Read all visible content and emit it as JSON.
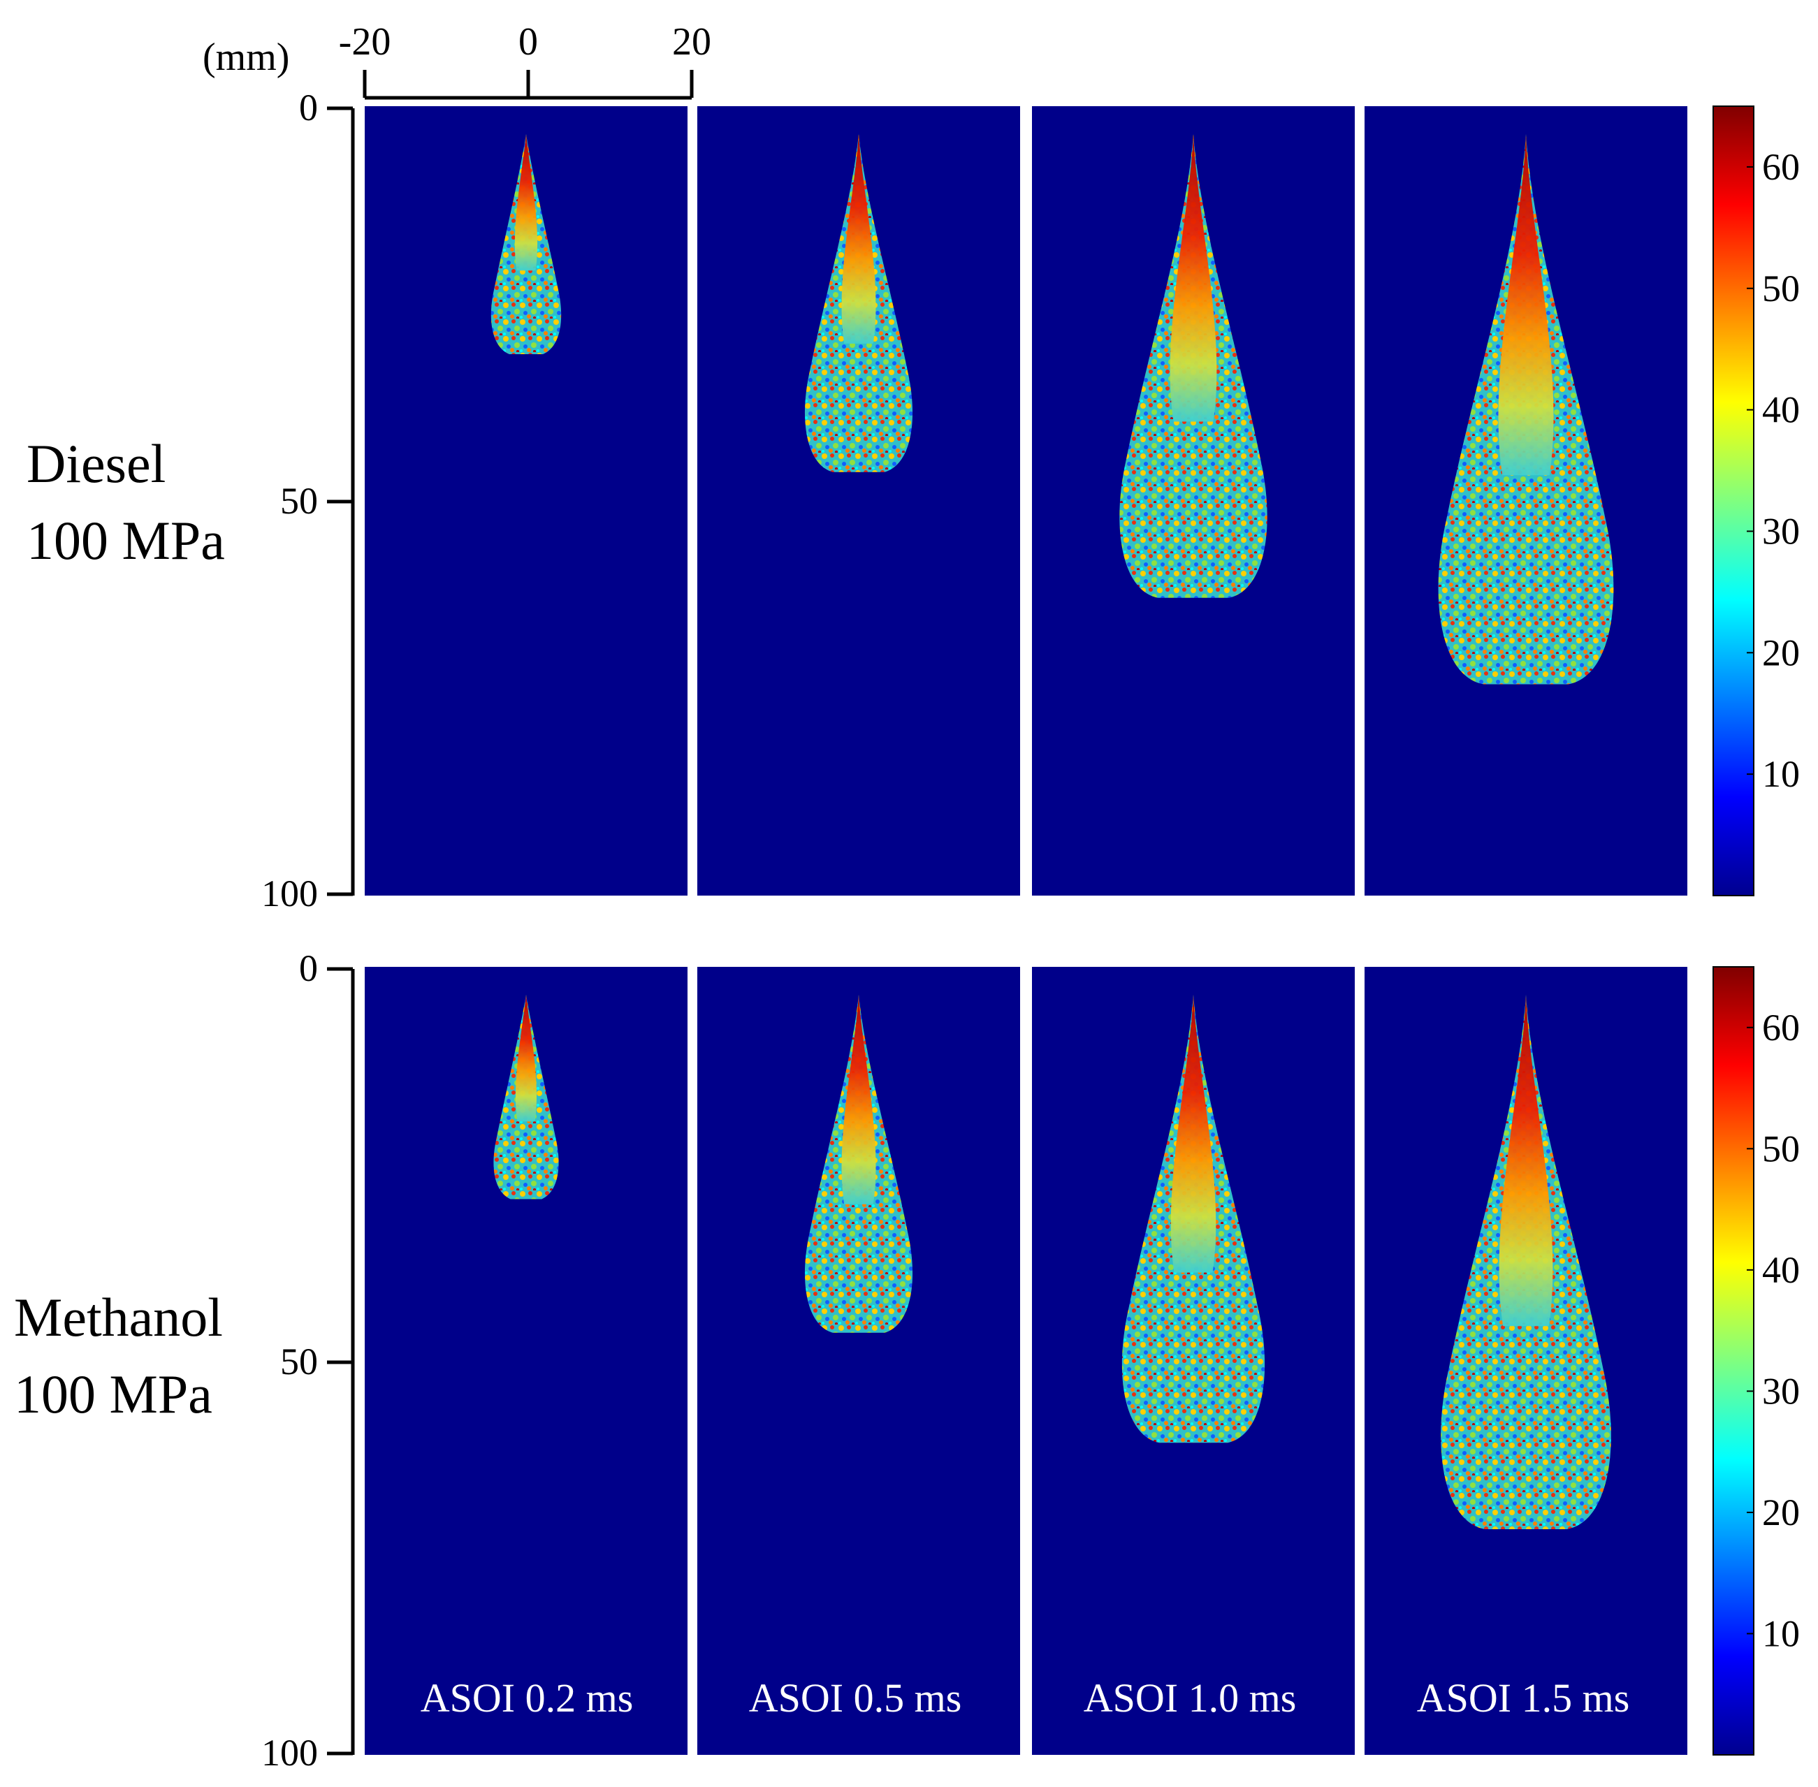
{
  "figure": {
    "unit_label": "(mm)",
    "x_axis": {
      "ticks": [
        "-20",
        "0",
        "20"
      ]
    },
    "y_axis": {
      "ticks": [
        "0",
        "50",
        "100"
      ]
    },
    "rows": [
      {
        "fuel": "Diesel",
        "pressure": "100 MPa",
        "spray_lengths_mm": [
          28,
          43,
          59,
          70
        ]
      },
      {
        "fuel": "Methanol",
        "pressure": "100 MPa",
        "spray_lengths_mm": [
          26,
          43,
          57,
          68
        ]
      }
    ],
    "time_labels": [
      "ASOI 0.2 ms",
      "ASOI 0.5 ms",
      "ASOI 1.0 ms",
      "ASOI 1.5 ms"
    ],
    "colorbar": {
      "ticks": [
        "60",
        "50",
        "40",
        "30",
        "20",
        "10"
      ],
      "range": [
        0,
        65
      ],
      "colormap": [
        "#00008f",
        "#0000ff",
        "#00ffff",
        "#ffff00",
        "#ff0000",
        "#800000"
      ]
    },
    "background_color": "#00008a"
  }
}
